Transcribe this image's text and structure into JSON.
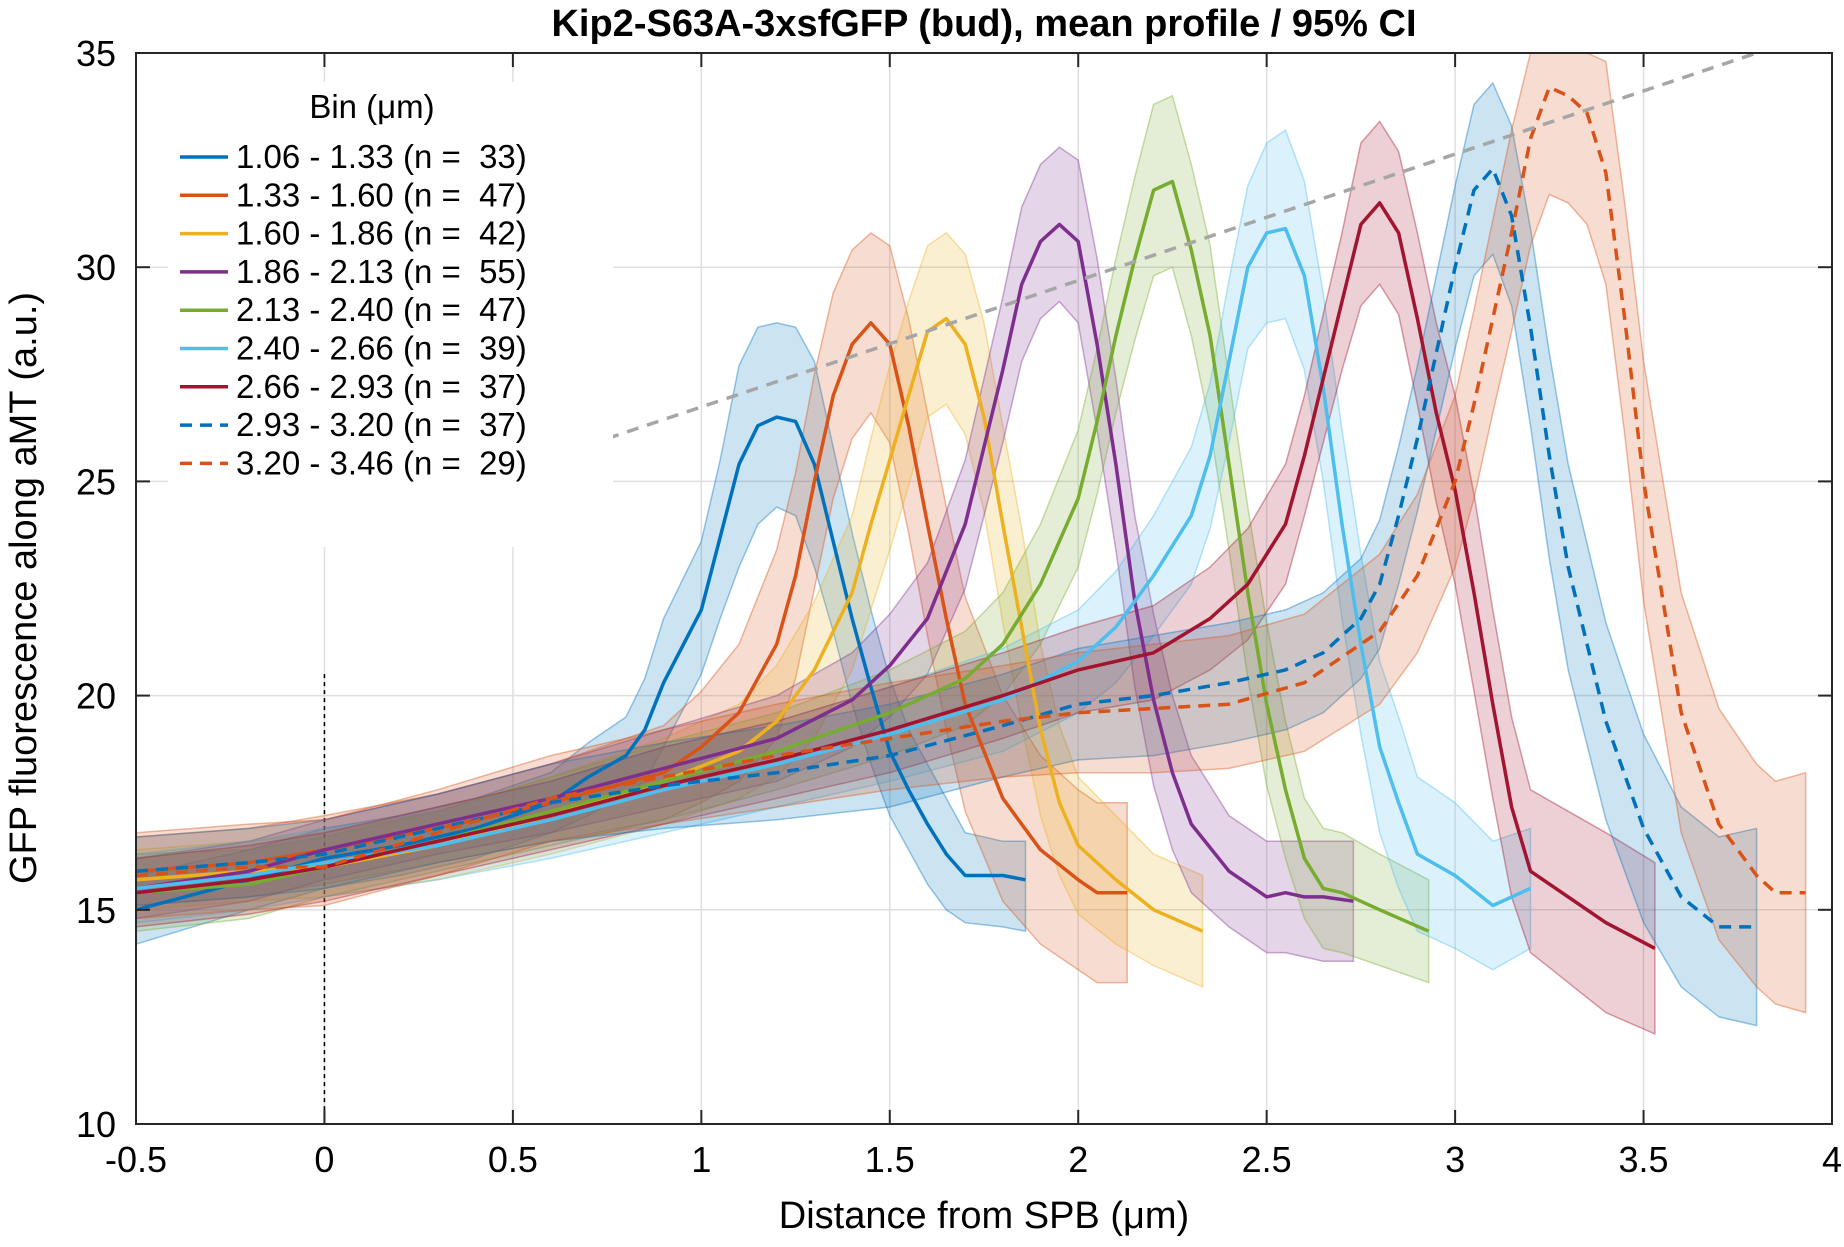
{
  "chart_data": {
    "type": "line",
    "title": "Kip2-S63A-3xsfGFP (bud), mean profile / 95% CI",
    "xlabel": "Distance from SPB (μm)",
    "ylabel": "GFP fluorescence along aMT (a.u.)",
    "xlim": [
      -0.5,
      4
    ],
    "ylim": [
      10,
      35
    ],
    "xticks": [
      -0.5,
      0,
      0.5,
      1,
      1.5,
      2,
      2.5,
      3,
      3.5,
      4
    ],
    "yticks": [
      10,
      15,
      20,
      25,
      30,
      35
    ],
    "grid": true,
    "legend_title": "Bin (μm)",
    "legend_position": "top-left",
    "trend_line": {
      "x": [
        0.75,
        3.8
      ],
      "y": [
        26.0,
        35.0
      ],
      "style": "dashed",
      "color": "#a6a6a6"
    },
    "series": [
      {
        "name": "1.06 - 1.33 (n =  33)",
        "color": "#0072bd",
        "dash": false,
        "x": [
          -0.5,
          -0.2,
          0.0,
          0.2,
          0.4,
          0.6,
          0.7,
          0.8,
          0.85,
          0.9,
          1.0,
          1.05,
          1.1,
          1.15,
          1.2,
          1.25,
          1.3,
          1.35,
          1.4,
          1.45,
          1.5,
          1.55,
          1.6,
          1.65,
          1.7,
          1.8,
          1.86
        ],
        "y": [
          15.0,
          15.7,
          16.2,
          16.5,
          16.9,
          17.5,
          18.1,
          18.6,
          19.2,
          20.3,
          22.0,
          23.7,
          25.4,
          26.3,
          26.5,
          26.4,
          25.4,
          23.6,
          21.8,
          20.2,
          18.7,
          17.8,
          17.0,
          16.3,
          15.8,
          15.8,
          15.7
        ],
        "lo": [
          14.2,
          15.0,
          15.5,
          15.8,
          16.2,
          16.8,
          17.2,
          17.7,
          18.0,
          18.8,
          20.5,
          21.8,
          23.0,
          24.0,
          24.4,
          24.2,
          23.0,
          21.5,
          19.8,
          18.4,
          17.2,
          16.4,
          15.6,
          15.0,
          14.7,
          14.6,
          14.5
        ],
        "hi": [
          15.8,
          16.4,
          16.9,
          17.2,
          17.6,
          18.2,
          18.9,
          19.5,
          20.4,
          21.8,
          23.6,
          25.5,
          27.7,
          28.6,
          28.7,
          28.6,
          27.8,
          25.8,
          23.8,
          22.0,
          20.4,
          19.2,
          18.4,
          17.6,
          16.8,
          16.6,
          16.6
        ]
      },
      {
        "name": "1.33 - 1.60 (n =  47)",
        "color": "#d95319",
        "dash": false,
        "x": [
          -0.5,
          -0.2,
          0.0,
          0.3,
          0.6,
          0.9,
          1.0,
          1.1,
          1.2,
          1.25,
          1.3,
          1.35,
          1.4,
          1.45,
          1.5,
          1.55,
          1.6,
          1.65,
          1.7,
          1.8,
          1.9,
          2.0,
          2.05,
          2.13
        ],
        "y": [
          15.9,
          16.1,
          16.4,
          16.9,
          17.5,
          18.2,
          18.8,
          19.6,
          21.2,
          22.8,
          25.0,
          27.0,
          28.2,
          28.7,
          28.2,
          26.3,
          24.0,
          21.8,
          19.8,
          17.6,
          16.4,
          15.7,
          15.4,
          15.4
        ],
        "lo": [
          15.1,
          15.3,
          15.6,
          16.1,
          16.6,
          17.1,
          17.5,
          18.0,
          19.0,
          20.4,
          22.5,
          24.6,
          26.0,
          26.6,
          25.9,
          23.8,
          21.4,
          19.2,
          17.3,
          15.2,
          14.2,
          13.6,
          13.3,
          13.3
        ],
        "hi": [
          16.7,
          16.9,
          17.2,
          17.7,
          18.4,
          19.3,
          20.1,
          21.2,
          23.4,
          25.2,
          27.5,
          29.4,
          30.4,
          30.8,
          30.5,
          28.8,
          26.6,
          24.4,
          22.3,
          20.0,
          18.6,
          17.8,
          17.5,
          17.5
        ]
      },
      {
        "name": "1.60 - 1.86 (n =  42)",
        "color": "#edb120",
        "dash": false,
        "x": [
          -0.5,
          -0.2,
          0.0,
          0.3,
          0.6,
          0.9,
          1.1,
          1.2,
          1.3,
          1.4,
          1.45,
          1.5,
          1.55,
          1.6,
          1.65,
          1.7,
          1.75,
          1.8,
          1.85,
          1.9,
          1.95,
          2.0,
          2.1,
          2.2,
          2.33
        ],
        "y": [
          15.7,
          15.9,
          16.0,
          16.5,
          17.2,
          18.0,
          18.7,
          19.4,
          20.6,
          22.4,
          24.0,
          25.5,
          27.0,
          28.5,
          28.8,
          28.2,
          26.5,
          24.0,
          21.6,
          19.2,
          17.5,
          16.5,
          15.7,
          15.0,
          14.5
        ],
        "lo": [
          15.0,
          15.2,
          15.3,
          15.7,
          16.3,
          17.0,
          17.6,
          18.1,
          19.0,
          20.6,
          22.0,
          23.4,
          24.9,
          26.5,
          26.8,
          26.1,
          24.3,
          21.7,
          19.3,
          17.2,
          15.8,
          14.9,
          14.2,
          13.7,
          13.2
        ],
        "hi": [
          16.4,
          16.6,
          16.8,
          17.3,
          18.1,
          19.0,
          19.8,
          20.7,
          22.2,
          24.2,
          26.0,
          27.7,
          29.2,
          30.5,
          30.8,
          30.3,
          28.7,
          26.3,
          23.9,
          21.2,
          19.3,
          18.1,
          17.2,
          16.3,
          15.8
        ]
      },
      {
        "name": "1.86 - 2.13 (n =  55)",
        "color": "#7e2f8e",
        "dash": false,
        "x": [
          -0.5,
          -0.2,
          0.0,
          0.3,
          0.6,
          0.9,
          1.2,
          1.4,
          1.5,
          1.6,
          1.7,
          1.75,
          1.8,
          1.85,
          1.9,
          1.95,
          2.0,
          2.05,
          2.1,
          2.15,
          2.2,
          2.25,
          2.3,
          2.4,
          2.5,
          2.55,
          2.6,
          2.65,
          2.73
        ],
        "y": [
          15.5,
          15.9,
          16.4,
          17.0,
          17.6,
          18.3,
          19.0,
          19.9,
          20.7,
          21.8,
          24.0,
          25.8,
          27.6,
          29.6,
          30.6,
          31.0,
          30.6,
          28.2,
          25.4,
          22.2,
          19.9,
          18.2,
          17.0,
          15.9,
          15.3,
          15.4,
          15.3,
          15.3,
          15.2
        ],
        "lo": [
          14.8,
          15.2,
          15.7,
          16.3,
          16.8,
          17.4,
          18.0,
          18.8,
          19.5,
          20.5,
          22.5,
          24.2,
          25.9,
          27.8,
          28.8,
          29.2,
          28.7,
          26.2,
          23.4,
          20.2,
          17.9,
          16.4,
          15.4,
          14.6,
          14.0,
          14.0,
          13.9,
          13.8,
          13.8
        ],
        "hi": [
          16.2,
          16.6,
          17.1,
          17.7,
          18.4,
          19.2,
          20.0,
          21.0,
          21.9,
          23.1,
          25.5,
          27.4,
          29.3,
          31.4,
          32.4,
          32.8,
          32.5,
          30.2,
          27.4,
          24.2,
          21.9,
          20.0,
          18.6,
          17.2,
          16.6,
          16.6,
          16.6,
          16.6,
          16.6
        ]
      },
      {
        "name": "2.13 - 2.40 (n =  47)",
        "color": "#77ac30",
        "dash": false,
        "x": [
          -0.5,
          -0.2,
          0.0,
          0.3,
          0.6,
          0.9,
          1.2,
          1.5,
          1.7,
          1.8,
          1.9,
          2.0,
          2.05,
          2.1,
          2.15,
          2.2,
          2.25,
          2.3,
          2.35,
          2.4,
          2.45,
          2.5,
          2.55,
          2.6,
          2.65,
          2.7,
          2.8,
          2.93
        ],
        "y": [
          15.4,
          15.6,
          16.0,
          16.6,
          17.3,
          18.0,
          18.7,
          19.6,
          20.4,
          21.2,
          22.6,
          24.6,
          26.4,
          28.4,
          30.2,
          31.8,
          32.0,
          30.4,
          28.4,
          25.4,
          22.4,
          19.8,
          17.8,
          16.2,
          15.5,
          15.4,
          15.0,
          14.5
        ],
        "lo": [
          14.5,
          14.8,
          15.3,
          15.9,
          16.5,
          17.1,
          17.8,
          18.6,
          19.3,
          20.0,
          21.2,
          23.0,
          24.7,
          26.6,
          28.3,
          29.8,
          30.0,
          28.4,
          26.3,
          23.4,
          20.4,
          17.9,
          16.2,
          14.8,
          14.1,
          14.0,
          13.7,
          13.3
        ],
        "hi": [
          16.3,
          16.4,
          16.7,
          17.3,
          18.1,
          18.9,
          19.6,
          20.6,
          21.5,
          22.4,
          24.0,
          26.2,
          28.1,
          30.2,
          32.1,
          33.8,
          34.0,
          32.4,
          30.5,
          27.4,
          24.4,
          21.7,
          19.4,
          17.6,
          16.9,
          16.8,
          16.3,
          15.7
        ]
      },
      {
        "name": "2.40 - 2.66 (n =  39)",
        "color": "#4dbeee",
        "dash": false,
        "x": [
          -0.5,
          -0.2,
          0.0,
          0.3,
          0.6,
          0.9,
          1.2,
          1.5,
          1.8,
          2.0,
          2.1,
          2.2,
          2.3,
          2.35,
          2.4,
          2.45,
          2.5,
          2.55,
          2.6,
          2.65,
          2.7,
          2.75,
          2.8,
          2.85,
          2.9,
          3.0,
          3.1,
          3.2
        ],
        "y": [
          15.5,
          15.8,
          16.1,
          16.5,
          17.1,
          17.8,
          18.4,
          19.1,
          19.9,
          20.8,
          21.6,
          22.8,
          24.2,
          25.6,
          27.8,
          30.0,
          30.8,
          30.9,
          29.8,
          27.2,
          24.0,
          21.2,
          18.8,
          17.5,
          16.3,
          15.8,
          15.1,
          15.5
        ],
        "lo": [
          14.7,
          15.0,
          15.3,
          15.7,
          16.2,
          16.8,
          17.4,
          18.0,
          18.7,
          19.6,
          20.3,
          21.4,
          22.6,
          23.9,
          25.9,
          28.1,
          28.7,
          28.8,
          27.6,
          25.0,
          21.8,
          19.1,
          16.8,
          15.5,
          14.5,
          14.1,
          13.6,
          14.1
        ],
        "hi": [
          16.3,
          16.6,
          16.9,
          17.3,
          18.0,
          18.8,
          19.4,
          20.2,
          21.1,
          22.0,
          22.9,
          24.2,
          25.8,
          27.3,
          29.7,
          31.9,
          32.9,
          33.2,
          32.0,
          29.4,
          26.2,
          23.3,
          20.8,
          19.5,
          18.1,
          17.5,
          16.6,
          16.9
        ]
      },
      {
        "name": "2.66 - 2.93 (n =  37)",
        "color": "#a2142f",
        "dash": false,
        "x": [
          -0.5,
          -0.2,
          0.0,
          0.3,
          0.6,
          0.9,
          1.2,
          1.5,
          1.8,
          2.0,
          2.2,
          2.35,
          2.45,
          2.55,
          2.6,
          2.65,
          2.7,
          2.75,
          2.8,
          2.85,
          2.9,
          2.95,
          3.0,
          3.05,
          3.1,
          3.15,
          3.2,
          3.3,
          3.4,
          3.53
        ],
        "y": [
          15.4,
          15.7,
          16.0,
          16.6,
          17.2,
          17.9,
          18.5,
          19.2,
          20.0,
          20.6,
          21.0,
          21.8,
          22.6,
          24.0,
          25.6,
          27.4,
          29.2,
          31.0,
          31.5,
          30.8,
          28.8,
          26.6,
          24.8,
          22.4,
          19.8,
          17.4,
          15.9,
          15.3,
          14.7,
          14.1
        ],
        "lo": [
          14.6,
          14.9,
          15.2,
          15.8,
          16.4,
          17.0,
          17.6,
          18.2,
          19.0,
          19.6,
          19.9,
          20.6,
          21.3,
          22.6,
          24.2,
          25.9,
          27.6,
          29.1,
          29.6,
          28.9,
          26.8,
          24.5,
          22.6,
          20.1,
          17.6,
          15.3,
          14.0,
          13.3,
          12.6,
          12.1
        ],
        "hi": [
          16.2,
          16.5,
          16.8,
          17.4,
          18.0,
          18.8,
          19.4,
          20.2,
          21.0,
          21.6,
          22.1,
          23.0,
          23.9,
          25.4,
          27.0,
          28.9,
          30.8,
          32.9,
          33.4,
          32.7,
          30.8,
          28.7,
          27.0,
          24.7,
          22.0,
          19.5,
          17.8,
          17.3,
          16.8,
          16.1
        ]
      },
      {
        "name": "2.93 - 3.20 (n =  37)",
        "color": "#0072bd",
        "dash": true,
        "x": [
          -0.5,
          -0.2,
          0.0,
          0.3,
          0.6,
          0.9,
          1.2,
          1.5,
          1.8,
          2.0,
          2.2,
          2.4,
          2.55,
          2.65,
          2.75,
          2.8,
          2.85,
          2.9,
          2.95,
          3.0,
          3.05,
          3.1,
          3.15,
          3.2,
          3.25,
          3.3,
          3.4,
          3.5,
          3.6,
          3.7,
          3.8
        ],
        "y": [
          15.9,
          16.1,
          16.3,
          16.9,
          17.5,
          17.9,
          18.2,
          18.6,
          19.3,
          19.8,
          20.0,
          20.3,
          20.6,
          21.0,
          21.8,
          22.6,
          24.2,
          26.0,
          28.0,
          30.0,
          31.8,
          32.3,
          31.2,
          28.6,
          25.6,
          23.0,
          19.4,
          16.9,
          15.3,
          14.6,
          14.6
        ],
        "lo": [
          15.1,
          15.3,
          15.5,
          16.1,
          16.6,
          16.9,
          17.1,
          17.4,
          18.1,
          18.5,
          18.6,
          18.9,
          19.2,
          19.6,
          20.4,
          21.1,
          22.6,
          24.3,
          26.2,
          28.1,
          29.8,
          30.3,
          29.1,
          26.3,
          23.2,
          20.6,
          17.1,
          14.7,
          13.2,
          12.5,
          12.3
        ],
        "hi": [
          16.7,
          16.9,
          17.1,
          17.7,
          18.4,
          18.9,
          19.3,
          19.8,
          20.5,
          21.1,
          21.4,
          21.7,
          22.0,
          22.4,
          23.2,
          24.1,
          25.8,
          27.7,
          29.8,
          31.9,
          33.8,
          34.3,
          33.3,
          30.9,
          28.0,
          25.4,
          21.7,
          19.1,
          17.4,
          16.7,
          16.9
        ]
      },
      {
        "name": "3.20 - 3.46 (n =  29)",
        "color": "#d95319",
        "dash": true,
        "x": [
          -0.5,
          -0.2,
          0.0,
          0.3,
          0.6,
          0.9,
          1.2,
          1.5,
          1.8,
          2.0,
          2.2,
          2.4,
          2.6,
          2.8,
          2.9,
          3.0,
          3.05,
          3.1,
          3.15,
          3.2,
          3.25,
          3.3,
          3.35,
          3.4,
          3.45,
          3.5,
          3.6,
          3.7,
          3.8,
          3.85,
          3.93
        ],
        "y": [
          15.8,
          16.0,
          16.0,
          16.8,
          17.6,
          18.1,
          18.6,
          19.0,
          19.4,
          19.6,
          19.7,
          19.8,
          20.3,
          21.5,
          22.8,
          25.0,
          26.8,
          28.8,
          30.8,
          33.0,
          34.2,
          34.0,
          33.6,
          32.2,
          28.8,
          25.0,
          19.6,
          17.0,
          15.8,
          15.4,
          15.4
        ],
        "lo": [
          14.8,
          15.0,
          15.1,
          15.8,
          16.6,
          17.0,
          17.4,
          17.8,
          18.1,
          18.2,
          18.2,
          18.3,
          18.7,
          19.8,
          21.0,
          23.0,
          24.6,
          26.6,
          28.5,
          30.5,
          31.7,
          31.5,
          31.0,
          29.6,
          26.1,
          22.2,
          16.8,
          14.3,
          13.2,
          12.8,
          12.6
        ],
        "hi": [
          16.8,
          17.0,
          17.1,
          17.8,
          18.6,
          19.2,
          19.8,
          20.3,
          20.7,
          21.0,
          21.2,
          21.4,
          21.9,
          23.3,
          24.7,
          27.0,
          29.0,
          31.1,
          33.2,
          35.0,
          35.0,
          35.0,
          35.0,
          34.8,
          31.5,
          27.8,
          22.4,
          19.7,
          18.4,
          18.0,
          18.2
        ]
      }
    ]
  }
}
